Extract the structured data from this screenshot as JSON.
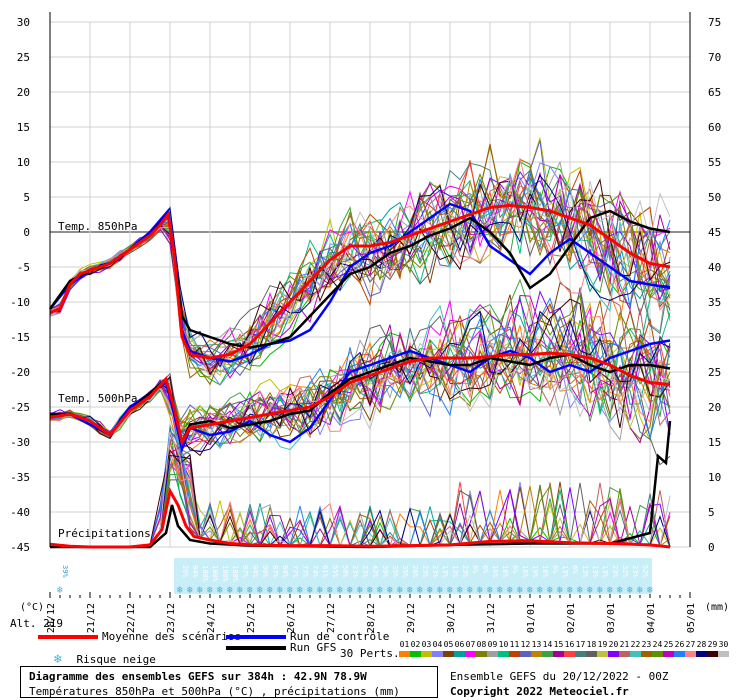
{
  "chart_data": {
    "type": "line",
    "x_dates": [
      "21/12",
      "22/12",
      "23/12",
      "24/12",
      "25/12",
      "26/12",
      "27/12",
      "28/12",
      "29/12",
      "30/12",
      "31/12",
      "01/01",
      "02/01",
      "03/01",
      "04/01",
      "05/01"
    ],
    "x_first_label": "20/12",
    "x_axis_days": 16,
    "left_axis": {
      "min": -45,
      "max": 30,
      "step": 5,
      "unit": "(°C)"
    },
    "right_axis": {
      "min": 0,
      "max": 75,
      "step": 5,
      "unit": "(mm)"
    },
    "labels": {
      "t850": "Temp. 850hPa",
      "t500": "Temp. 500hPa",
      "precip": "Précipitations",
      "alt": "Alt. 219"
    },
    "series": [
      {
        "name": "Moyenne des scénarios",
        "color": "#ff0000",
        "t850": [
          [
            0,
            -11.5
          ],
          [
            0.25,
            -11
          ],
          [
            0.5,
            -7.5
          ],
          [
            0.75,
            -6
          ],
          [
            1,
            -5.5
          ],
          [
            1.5,
            -4.5
          ],
          [
            2,
            -2.5
          ],
          [
            2.5,
            -0.5
          ],
          [
            2.75,
            1
          ],
          [
            2.95,
            2.5
          ],
          [
            3.1,
            -3
          ],
          [
            3.3,
            -15
          ],
          [
            3.5,
            -17.5
          ],
          [
            4,
            -18
          ],
          [
            4.5,
            -17.5
          ],
          [
            5,
            -16
          ],
          [
            5.5,
            -13
          ],
          [
            6,
            -10
          ],
          [
            6.5,
            -7
          ],
          [
            7,
            -4
          ],
          [
            7.5,
            -2
          ],
          [
            8,
            -2
          ],
          [
            8.5,
            -1.5
          ],
          [
            9,
            -0.5
          ],
          [
            9.5,
            0.5
          ],
          [
            10,
            1.5
          ],
          [
            10.5,
            2.5
          ],
          [
            11,
            3.5
          ],
          [
            11.5,
            3.8
          ],
          [
            12,
            3.5
          ],
          [
            12.5,
            3
          ],
          [
            13,
            2
          ],
          [
            13.5,
            1
          ],
          [
            14,
            -1
          ],
          [
            14.5,
            -3
          ],
          [
            15,
            -4.5
          ],
          [
            15.5,
            -5
          ]
        ],
        "t500": [
          [
            0,
            -26.5
          ],
          [
            0.5,
            -26
          ],
          [
            1,
            -27
          ],
          [
            1.5,
            -29
          ],
          [
            2,
            -25.5
          ],
          [
            2.5,
            -23.5
          ],
          [
            2.9,
            -21
          ],
          [
            3.1,
            -25
          ],
          [
            3.3,
            -30
          ],
          [
            3.5,
            -28
          ],
          [
            4,
            -27.5
          ],
          [
            4.5,
            -27
          ],
          [
            5,
            -26.5
          ],
          [
            5.5,
            -26
          ],
          [
            6,
            -25.5
          ],
          [
            6.5,
            -25
          ],
          [
            7,
            -23.5
          ],
          [
            7.5,
            -21.5
          ],
          [
            8,
            -20.5
          ],
          [
            8.5,
            -19.5
          ],
          [
            9,
            -18.5
          ],
          [
            9.5,
            -18
          ],
          [
            10,
            -18
          ],
          [
            10.5,
            -18
          ],
          [
            11,
            -17.8
          ],
          [
            11.5,
            -17.5
          ],
          [
            12,
            -17.5
          ],
          [
            12.5,
            -17.3
          ],
          [
            13,
            -17.5
          ],
          [
            13.5,
            -18
          ],
          [
            14,
            -19
          ],
          [
            14.5,
            -20.5
          ],
          [
            15,
            -21.5
          ],
          [
            15.5,
            -21.8
          ]
        ],
        "precip": [
          [
            0,
            0.4
          ],
          [
            0.5,
            0.1
          ],
          [
            1,
            0
          ],
          [
            2,
            0
          ],
          [
            2.5,
            0.3
          ],
          [
            2.8,
            2.5
          ],
          [
            3,
            8
          ],
          [
            3.2,
            6
          ],
          [
            3.4,
            3
          ],
          [
            3.6,
            1.5
          ],
          [
            4,
            1
          ],
          [
            4.5,
            0.5
          ],
          [
            5,
            0.3
          ],
          [
            6,
            0.2
          ],
          [
            7,
            0.2
          ],
          [
            8,
            0.1
          ],
          [
            9,
            0.2
          ],
          [
            10,
            0.3
          ],
          [
            11,
            0.8
          ],
          [
            12,
            0.9
          ],
          [
            13,
            0.6
          ],
          [
            14,
            0.5
          ],
          [
            15,
            0.3
          ],
          [
            15.5,
            0
          ]
        ]
      },
      {
        "name": "Run de contrôle",
        "color": "#0000ff",
        "t850": [
          [
            0,
            -11
          ],
          [
            0.5,
            -7.5
          ],
          [
            1,
            -5.5
          ],
          [
            1.5,
            -4.5
          ],
          [
            2,
            -2.5
          ],
          [
            2.5,
            0
          ],
          [
            2.95,
            3
          ],
          [
            3.1,
            -3
          ],
          [
            3.3,
            -14
          ],
          [
            3.5,
            -17
          ],
          [
            4,
            -18
          ],
          [
            4.5,
            -18.5
          ],
          [
            5,
            -17.5
          ],
          [
            5.5,
            -16
          ],
          [
            6,
            -15.5
          ],
          [
            6.5,
            -14
          ],
          [
            7,
            -10
          ],
          [
            7.5,
            -5
          ],
          [
            8,
            -3
          ],
          [
            8.5,
            -2
          ],
          [
            9,
            0
          ],
          [
            9.5,
            2
          ],
          [
            10,
            4
          ],
          [
            10.5,
            3
          ],
          [
            11,
            -2
          ],
          [
            11.5,
            -4
          ],
          [
            12,
            -6
          ],
          [
            12.5,
            -3
          ],
          [
            13,
            -1
          ],
          [
            13.5,
            -3
          ],
          [
            14,
            -5
          ],
          [
            14.5,
            -7
          ],
          [
            15,
            -7.5
          ],
          [
            15.5,
            -8
          ]
        ],
        "t500": [
          [
            0,
            -26
          ],
          [
            0.5,
            -26
          ],
          [
            1,
            -27.5
          ],
          [
            1.5,
            -29
          ],
          [
            2,
            -25
          ],
          [
            2.5,
            -23
          ],
          [
            2.9,
            -21.5
          ],
          [
            3.1,
            -26
          ],
          [
            3.3,
            -31
          ],
          [
            3.5,
            -28
          ],
          [
            4,
            -29
          ],
          [
            4.5,
            -28.5
          ],
          [
            5,
            -27
          ],
          [
            5.5,
            -29
          ],
          [
            6,
            -30
          ],
          [
            6.5,
            -28
          ],
          [
            7,
            -24
          ],
          [
            7.5,
            -20
          ],
          [
            8,
            -19
          ],
          [
            8.5,
            -18
          ],
          [
            9,
            -17
          ],
          [
            9.5,
            -18
          ],
          [
            10,
            -19
          ],
          [
            10.5,
            -20
          ],
          [
            11,
            -18
          ],
          [
            11.5,
            -17
          ],
          [
            12,
            -18
          ],
          [
            12.5,
            -20
          ],
          [
            13,
            -19
          ],
          [
            13.5,
            -20
          ],
          [
            14,
            -18
          ],
          [
            14.5,
            -17
          ],
          [
            15,
            -16
          ],
          [
            15.5,
            -15.5
          ]
        ]
      },
      {
        "name": "Run GFS",
        "color": "#000000",
        "t850": [
          [
            0,
            -11
          ],
          [
            0.5,
            -7
          ],
          [
            1,
            -5.5
          ],
          [
            1.5,
            -4.5
          ],
          [
            2,
            -2.5
          ],
          [
            2.5,
            -0.5
          ],
          [
            2.95,
            2.5
          ],
          [
            3.1,
            -3
          ],
          [
            3.3,
            -12
          ],
          [
            3.5,
            -14
          ],
          [
            4,
            -15
          ],
          [
            4.5,
            -16
          ],
          [
            5,
            -16.5
          ],
          [
            5.5,
            -16
          ],
          [
            6,
            -15
          ],
          [
            6.5,
            -12
          ],
          [
            7,
            -9
          ],
          [
            7.5,
            -6
          ],
          [
            8,
            -5
          ],
          [
            8.5,
            -3
          ],
          [
            9,
            -2
          ],
          [
            9.5,
            -0.5
          ],
          [
            10,
            0.5
          ],
          [
            10.5,
            2
          ],
          [
            11,
            0
          ],
          [
            11.5,
            -3
          ],
          [
            12,
            -8
          ],
          [
            12.5,
            -6
          ],
          [
            13,
            -2
          ],
          [
            13.5,
            2
          ],
          [
            14,
            3
          ],
          [
            14.5,
            1.5
          ],
          [
            15,
            0.5
          ],
          [
            15.5,
            0
          ]
        ],
        "t500": [
          [
            0,
            -26
          ],
          [
            0.5,
            -26
          ],
          [
            1,
            -27
          ],
          [
            1.5,
            -29
          ],
          [
            2,
            -25.5
          ],
          [
            2.5,
            -23
          ],
          [
            2.9,
            -21
          ],
          [
            3.1,
            -25
          ],
          [
            3.3,
            -30
          ],
          [
            3.5,
            -27.5
          ],
          [
            4,
            -27
          ],
          [
            4.5,
            -28
          ],
          [
            5,
            -27.5
          ],
          [
            5.5,
            -27
          ],
          [
            6,
            -26
          ],
          [
            6.5,
            -25.5
          ],
          [
            7,
            -23
          ],
          [
            7.5,
            -21
          ],
          [
            8,
            -20
          ],
          [
            8.5,
            -19
          ],
          [
            9,
            -18
          ],
          [
            9.5,
            -18.5
          ],
          [
            10,
            -19
          ],
          [
            10.5,
            -19
          ],
          [
            11,
            -18
          ],
          [
            11.5,
            -18.5
          ],
          [
            12,
            -19
          ],
          [
            12.5,
            -18
          ],
          [
            13,
            -17.5
          ],
          [
            13.5,
            -19
          ],
          [
            14,
            -20
          ],
          [
            14.5,
            -19
          ],
          [
            15,
            -19
          ],
          [
            15.5,
            -19.5
          ]
        ],
        "precip": [
          [
            0,
            0
          ],
          [
            2.5,
            0
          ],
          [
            2.9,
            2
          ],
          [
            3.05,
            6
          ],
          [
            3.2,
            3
          ],
          [
            3.5,
            1
          ],
          [
            4,
            0.5
          ],
          [
            5,
            0.2
          ],
          [
            8,
            0
          ],
          [
            10,
            0.3
          ],
          [
            12,
            0.5
          ],
          [
            14,
            0.5
          ],
          [
            15,
            2
          ],
          [
            15.2,
            13
          ],
          [
            15.4,
            12
          ],
          [
            15.5,
            18
          ]
        ]
      }
    ],
    "snow_risk": [
      {
        "day": 0.25,
        "value": "39%"
      },
      {
        "day": 3.25,
        "value": "26%"
      },
      {
        "day": 3.5,
        "value": "94%"
      },
      {
        "day": 3.75,
        "value": "100%"
      },
      {
        "day": 4.0,
        "value": "100%"
      },
      {
        "day": 4.25,
        "value": "100%"
      },
      {
        "day": 4.5,
        "value": "100%"
      },
      {
        "day": 4.75,
        "value": "97%"
      },
      {
        "day": 5.0,
        "value": "94%"
      },
      {
        "day": 5.25,
        "value": "90%"
      },
      {
        "day": 5.5,
        "value": "87%"
      },
      {
        "day": 5.75,
        "value": "84%"
      },
      {
        "day": 6.0,
        "value": "77%"
      },
      {
        "day": 6.25,
        "value": "77%"
      },
      {
        "day": 6.5,
        "value": "74%"
      },
      {
        "day": 6.75,
        "value": "61%"
      },
      {
        "day": 7.0,
        "value": "55%"
      },
      {
        "day": 7.25,
        "value": "58%"
      },
      {
        "day": 7.5,
        "value": "23%"
      },
      {
        "day": 7.75,
        "value": "23%"
      },
      {
        "day": 8.0,
        "value": "42%"
      },
      {
        "day": 8.25,
        "value": "39%"
      },
      {
        "day": 8.5,
        "value": "35%"
      },
      {
        "day": 8.75,
        "value": "35%"
      },
      {
        "day": 9.0,
        "value": "26%"
      },
      {
        "day": 9.25,
        "value": "23%"
      },
      {
        "day": 9.5,
        "value": "23%"
      },
      {
        "day": 9.75,
        "value": "13%"
      },
      {
        "day": 10.0,
        "value": "13%"
      },
      {
        "day": 10.25,
        "value": "23%"
      },
      {
        "day": 10.5,
        "value": "6%"
      },
      {
        "day": 10.75,
        "value": "6%"
      },
      {
        "day": 11.0,
        "value": "16%"
      },
      {
        "day": 11.25,
        "value": "16%"
      },
      {
        "day": 11.5,
        "value": "6%"
      },
      {
        "day": 11.75,
        "value": "16%"
      },
      {
        "day": 12.0,
        "value": "19%"
      },
      {
        "day": 12.25,
        "value": "16%"
      },
      {
        "day": 12.5,
        "value": "6%"
      },
      {
        "day": 12.75,
        "value": "13%"
      },
      {
        "day": 13.0,
        "value": "6%"
      },
      {
        "day": 13.25,
        "value": "13%"
      },
      {
        "day": 13.5,
        "value": "13%"
      },
      {
        "day": 13.75,
        "value": "13%"
      },
      {
        "day": 14.0,
        "value": "23%"
      },
      {
        "day": 14.25,
        "value": "32%"
      },
      {
        "day": 14.5,
        "value": "23%"
      },
      {
        "day": 14.75,
        "value": "52%"
      },
      {
        "day": 15.0,
        "value": "42%"
      }
    ]
  },
  "legend": {
    "mean": "Moyenne des scénarios",
    "control": "Run de contrôle",
    "gfs": "Run GFS",
    "snow": "Risque neige",
    "perts": "30 Perts.",
    "pert_numbers": [
      "01",
      "02",
      "03",
      "04",
      "05",
      "06",
      "07",
      "08",
      "09",
      "10",
      "11",
      "12",
      "13",
      "14",
      "15",
      "16",
      "17",
      "18",
      "19",
      "20",
      "21",
      "22",
      "23",
      "24",
      "25",
      "26",
      "27",
      "28",
      "29",
      "30"
    ],
    "pert_colors": [
      "#ff8000",
      "#00c000",
      "#c0c000",
      "#8080ff",
      "#804000",
      "#00a0a0",
      "#ff00ff",
      "#808000",
      "#a0a0a0",
      "#00c080",
      "#c04000",
      "#6060c0",
      "#c08000",
      "#40a040",
      "#a000a0",
      "#ff4040",
      "#408080",
      "#606060",
      "#c0c040",
      "#8000ff",
      "#c06060",
      "#40c0c0",
      "#a06000",
      "#609000",
      "#c000c0",
      "#2080ff",
      "#ff8080",
      "#000080",
      "#400000",
      "#c0c0c0"
    ]
  },
  "footer": {
    "title": "Diagramme des ensembles GEFS sur 384h : 42.9N 78.9W",
    "subtitle": "Températures 850hPa et 500hPa (°C) , précipitations (mm)",
    "run": "Ensemble GEFS du 20/12/2022 - 00Z",
    "copyright": "Copyright 2022 Meteociel.fr"
  },
  "colors": {
    "mean": "#ff0000",
    "control": "#0000ff",
    "gfs": "#000000",
    "grid": "#d0d0d0",
    "snow_band": "#c8eef8"
  }
}
